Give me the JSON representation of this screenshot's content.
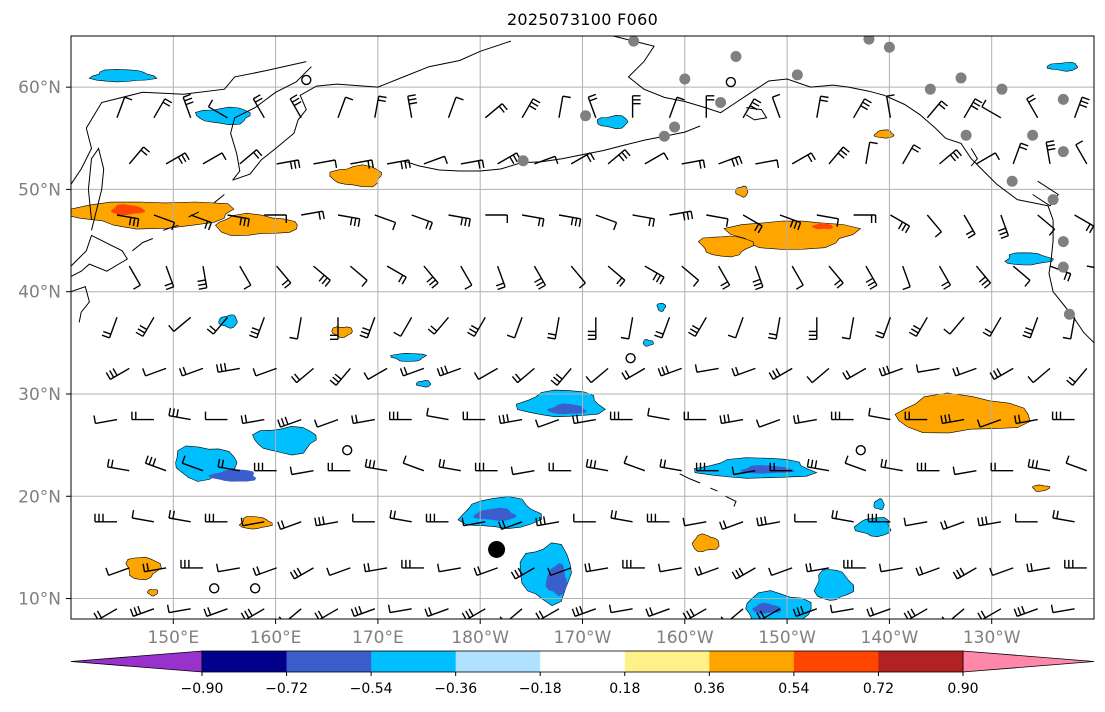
{
  "title": "2025073100 F060",
  "map": {
    "lon_range": [
      140,
      240
    ],
    "lat_range": [
      8,
      65
    ],
    "lat_ticks": [
      {
        "value": 10,
        "label": "10°N"
      },
      {
        "value": 20,
        "label": "20°N"
      },
      {
        "value": 30,
        "label": "30°N"
      },
      {
        "value": 40,
        "label": "40°N"
      },
      {
        "value": 50,
        "label": "50°N"
      },
      {
        "value": 60,
        "label": "60°N"
      }
    ],
    "lon_ticks": [
      {
        "value": 150,
        "label": "150°E"
      },
      {
        "value": 160,
        "label": "160°E"
      },
      {
        "value": 170,
        "label": "170°E"
      },
      {
        "value": 180,
        "label": "180°W"
      },
      {
        "value": 190,
        "label": "170°W"
      },
      {
        "value": 200,
        "label": "160°W"
      },
      {
        "value": 210,
        "label": "150°W"
      },
      {
        "value": 220,
        "label": "140°W"
      },
      {
        "value": 230,
        "label": "130°W"
      }
    ],
    "colors": {
      "grid": "#b0b0b0",
      "coast": "#000000",
      "marker_gray": "#808080"
    }
  },
  "colorbar": {
    "levels": [
      "−0.90",
      "−0.72",
      "−0.54",
      "−0.36",
      "−0.18",
      "0.18",
      "0.36",
      "0.54",
      "0.72",
      "0.90"
    ],
    "colors": [
      "#9932cc",
      "#00008b",
      "#3a5fcd",
      "#00bfff",
      "#b0e2ff",
      "#ffffff",
      "#fff08a",
      "#ffa500",
      "#ff4500",
      "#b22222",
      "#ff88aa"
    ]
  },
  "fields": {
    "positive": [
      {
        "lon": 148,
        "lat": 47.6,
        "rx": 8,
        "ry": 1.3,
        "level": 1
      },
      {
        "lon": 145.5,
        "lat": 48,
        "rx": 1.6,
        "ry": 0.5,
        "level": 2
      },
      {
        "lon": 158,
        "lat": 46.5,
        "rx": 4,
        "ry": 1,
        "level": 1
      },
      {
        "lon": 168,
        "lat": 51.3,
        "rx": 2.5,
        "ry": 1,
        "level": 1
      },
      {
        "lon": 210.5,
        "lat": 45.6,
        "rx": 6,
        "ry": 1.4,
        "level": 1
      },
      {
        "lon": 204,
        "lat": 44.5,
        "rx": 2.5,
        "ry": 1,
        "level": 1
      },
      {
        "lon": 213.5,
        "lat": 46.4,
        "rx": 1,
        "ry": 0.3,
        "level": 2
      },
      {
        "lon": 227,
        "lat": 28,
        "rx": 6.5,
        "ry": 1.8,
        "level": 1
      },
      {
        "lon": 147,
        "lat": 13,
        "rx": 1.6,
        "ry": 1.1,
        "level": 1
      },
      {
        "lon": 148,
        "lat": 10.6,
        "rx": 0.5,
        "ry": 0.3,
        "level": 1
      },
      {
        "lon": 158,
        "lat": 17.4,
        "rx": 1.5,
        "ry": 0.6,
        "level": 1
      },
      {
        "lon": 202,
        "lat": 15.4,
        "rx": 1.3,
        "ry": 0.8,
        "level": 1
      },
      {
        "lon": 166.5,
        "lat": 36.1,
        "rx": 1,
        "ry": 0.5,
        "level": 1
      },
      {
        "lon": 219.5,
        "lat": 55.4,
        "rx": 0.9,
        "ry": 0.4,
        "level": 1
      },
      {
        "lon": 205.6,
        "lat": 49.8,
        "rx": 0.6,
        "ry": 0.5,
        "level": 1
      },
      {
        "lon": 234.8,
        "lat": 20.8,
        "rx": 0.8,
        "ry": 0.3,
        "level": 1
      }
    ],
    "negative": [
      {
        "lon": 145,
        "lat": 61.1,
        "rx": 3,
        "ry": 0.6,
        "level": 1
      },
      {
        "lon": 155,
        "lat": 57.2,
        "rx": 2.6,
        "ry": 0.8,
        "level": 1
      },
      {
        "lon": 155.4,
        "lat": 37.1,
        "rx": 0.9,
        "ry": 0.6,
        "level": 1
      },
      {
        "lon": 153,
        "lat": 23.3,
        "rx": 3,
        "ry": 1.6,
        "level": 1
      },
      {
        "lon": 161,
        "lat": 25.5,
        "rx": 3,
        "ry": 1.3,
        "level": 1
      },
      {
        "lon": 156,
        "lat": 22,
        "rx": 2.2,
        "ry": 0.6,
        "level": 2
      },
      {
        "lon": 182,
        "lat": 18.3,
        "rx": 3.8,
        "ry": 1.5,
        "level": 1
      },
      {
        "lon": 181.5,
        "lat": 18.2,
        "rx": 2,
        "ry": 0.6,
        "level": 2
      },
      {
        "lon": 188,
        "lat": 29,
        "rx": 4,
        "ry": 1.3,
        "level": 1
      },
      {
        "lon": 188.5,
        "lat": 28.5,
        "rx": 1.8,
        "ry": 0.5,
        "level": 2
      },
      {
        "lon": 186.5,
        "lat": 12.5,
        "rx": 2.5,
        "ry": 2.8,
        "level": 1
      },
      {
        "lon": 187.5,
        "lat": 11.8,
        "rx": 1,
        "ry": 1.5,
        "level": 2
      },
      {
        "lon": 207,
        "lat": 22.7,
        "rx": 5.5,
        "ry": 1,
        "level": 1
      },
      {
        "lon": 208,
        "lat": 22.6,
        "rx": 2.5,
        "ry": 0.4,
        "level": 2
      },
      {
        "lon": 209,
        "lat": 9,
        "rx": 3.2,
        "ry": 1.6,
        "level": 1
      },
      {
        "lon": 208,
        "lat": 9,
        "rx": 1.4,
        "ry": 0.5,
        "level": 2
      },
      {
        "lon": 214.5,
        "lat": 11.3,
        "rx": 1.8,
        "ry": 1.5,
        "level": 1
      },
      {
        "lon": 218.5,
        "lat": 17,
        "rx": 1.7,
        "ry": 0.9,
        "level": 1
      },
      {
        "lon": 193,
        "lat": 56.6,
        "rx": 1.5,
        "ry": 0.6,
        "level": 1
      },
      {
        "lon": 233.5,
        "lat": 43.2,
        "rx": 2.2,
        "ry": 0.6,
        "level": 1
      },
      {
        "lon": 237,
        "lat": 62,
        "rx": 1.5,
        "ry": 0.4,
        "level": 1
      },
      {
        "lon": 173,
        "lat": 33.6,
        "rx": 1.6,
        "ry": 0.4,
        "level": 1
      },
      {
        "lon": 174.5,
        "lat": 31,
        "rx": 0.7,
        "ry": 0.3,
        "level": 1
      },
      {
        "lon": 197.7,
        "lat": 38.5,
        "rx": 0.4,
        "ry": 0.4,
        "level": 1
      },
      {
        "lon": 196.4,
        "lat": 35,
        "rx": 0.5,
        "ry": 0.3,
        "level": 1
      },
      {
        "lon": 219,
        "lat": 19.2,
        "rx": 0.5,
        "ry": 0.5,
        "level": 1
      }
    ]
  },
  "markers": {
    "gray": [
      [
        195,
        64.5
      ],
      [
        205,
        63
      ],
      [
        218,
        64.7
      ],
      [
        220,
        63.9
      ],
      [
        200,
        60.8
      ],
      [
        211,
        61.2
      ],
      [
        203.5,
        58.5
      ],
      [
        190.3,
        57.2
      ],
      [
        198,
        55.2
      ],
      [
        224,
        59.8
      ],
      [
        227,
        60.9
      ],
      [
        231,
        59.8
      ],
      [
        237,
        58.8
      ],
      [
        234,
        55.3
      ],
      [
        237,
        53.7
      ],
      [
        227.5,
        55.3
      ],
      [
        232,
        50.8
      ],
      [
        236,
        49
      ],
      [
        237,
        44.9
      ],
      [
        237,
        42.4
      ],
      [
        237.6,
        37.8
      ],
      [
        184.2,
        52.8
      ],
      [
        199,
        56.1
      ]
    ],
    "open": [
      [
        163,
        60.7
      ],
      [
        204.5,
        60.5
      ],
      [
        194.7,
        33.5
      ],
      [
        217.2,
        24.5
      ],
      [
        167,
        24.5
      ],
      [
        154,
        11
      ],
      [
        158,
        11
      ]
    ],
    "big": [
      [
        181.6,
        14.8
      ]
    ]
  },
  "barbs": {
    "rows": [
      {
        "lat": 57,
        "angles": [
          20,
          30,
          340,
          300,
          330,
          330,
          20,
          10,
          350,
          20,
          50,
          30,
          10,
          340,
          0,
          20,
          0,
          30,
          340,
          10,
          30,
          350,
          40,
          30,
          300,
          330,
          20
        ]
      },
      {
        "lat": 52.5,
        "angles": [
          40,
          60,
          60,
          50,
          80,
          80,
          80,
          80,
          70,
          80,
          60,
          70,
          60,
          50,
          60,
          80,
          70,
          80,
          60,
          40,
          10,
          30,
          50,
          60,
          20,
          350,
          330
        ]
      },
      {
        "lat": 47.5,
        "angles": [
          100,
          110,
          110,
          100,
          90,
          80,
          100,
          110,
          110,
          100,
          90,
          100,
          100,
          110,
          100,
          80,
          100,
          120,
          110,
          100,
          90,
          120,
          140,
          150,
          160,
          130,
          120
        ]
      },
      {
        "lat": 42.5,
        "angles": [
          150,
          160,
          170,
          150,
          140,
          130,
          130,
          120,
          140,
          150,
          160,
          150,
          140,
          130,
          120,
          130,
          150,
          160,
          150,
          140,
          150,
          160,
          150,
          140,
          130,
          110,
          100
        ]
      },
      {
        "lat": 37.5,
        "angles": [
          200,
          210,
          230,
          220,
          200,
          190,
          180,
          200,
          210,
          220,
          210,
          200,
          190,
          180,
          190,
          200,
          210,
          200,
          190,
          180,
          190,
          200,
          210,
          220,
          210,
          200,
          190
        ]
      },
      {
        "lat": 32.5,
        "angles": [
          240,
          250,
          250,
          260,
          250,
          230,
          220,
          240,
          250,
          250,
          240,
          230,
          220,
          230,
          240,
          250,
          260,
          250,
          240,
          230,
          240,
          250,
          260,
          250,
          240,
          230,
          220
        ]
      },
      {
        "lat": 27.5,
        "angles": [
          260,
          270,
          280,
          270,
          260,
          250,
          250,
          260,
          270,
          280,
          270,
          260,
          250,
          260,
          270,
          280,
          270,
          260,
          250,
          260,
          270,
          280,
          270,
          260,
          250,
          260,
          270
        ]
      },
      {
        "lat": 22.5,
        "angles": [
          280,
          290,
          290,
          280,
          270,
          260,
          270,
          280,
          290,
          280,
          270,
          260,
          270,
          280,
          290,
          280,
          270,
          260,
          270,
          280,
          290,
          280,
          270,
          260,
          270,
          280,
          290
        ]
      },
      {
        "lat": 17.5,
        "angles": [
          270,
          280,
          280,
          270,
          260,
          250,
          260,
          270,
          280,
          270,
          260,
          250,
          260,
          270,
          280,
          270,
          260,
          250,
          260,
          270,
          280,
          270,
          260,
          250,
          260,
          270,
          280
        ]
      },
      {
        "lat": 13,
        "angles": [
          250,
          260,
          270,
          260,
          250,
          240,
          250,
          260,
          270,
          260,
          250,
          240,
          250,
          260,
          270,
          260,
          250,
          240,
          250,
          260,
          270,
          260,
          250,
          240,
          250,
          260,
          270
        ]
      },
      {
        "lat": 9,
        "angles": [
          240,
          250,
          260,
          250,
          240,
          230,
          240,
          250,
          260,
          250,
          240,
          230,
          240,
          250,
          260,
          250,
          240,
          230,
          240,
          250,
          260,
          250,
          240,
          230,
          240,
          250,
          260
        ]
      }
    ],
    "lon_start": 144.5,
    "lon_step": 3.6
  }
}
